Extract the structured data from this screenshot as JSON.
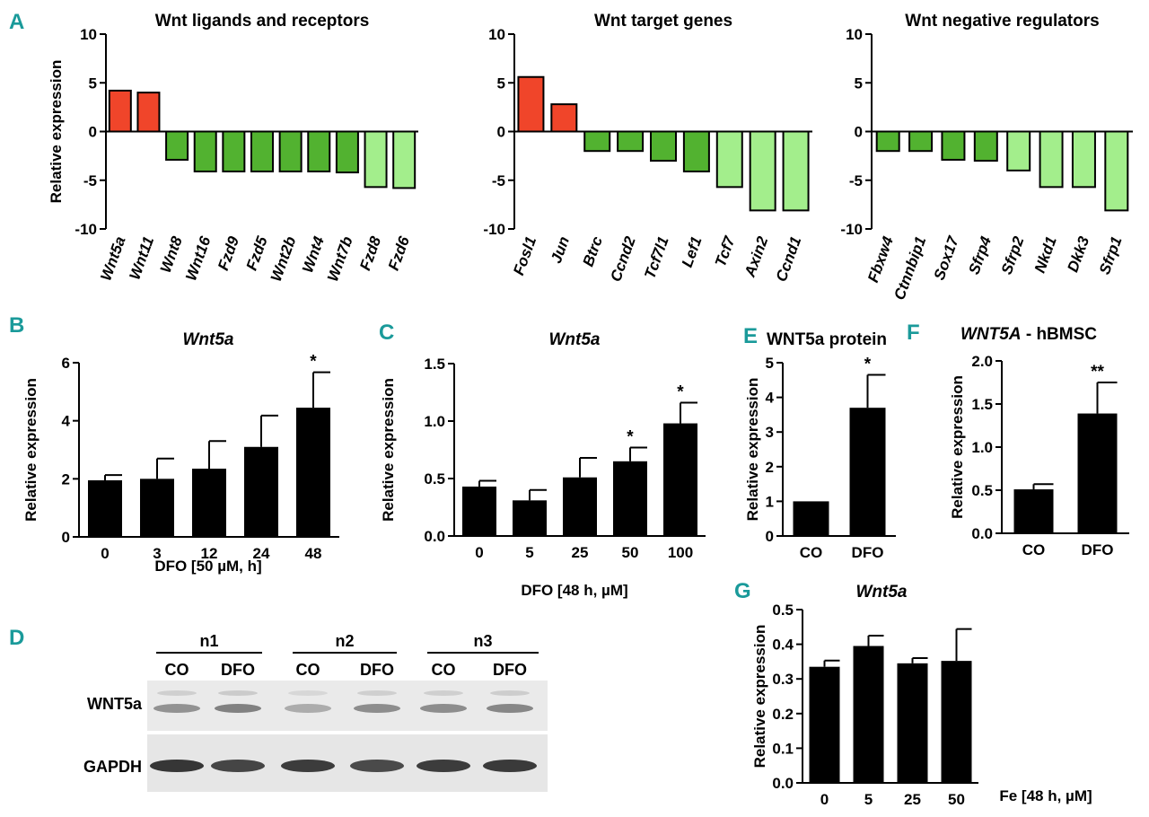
{
  "chart_data": [
    {
      "id": "A1",
      "panel_label": "A",
      "type": "bar",
      "title": "Wnt ligands and receptors",
      "ylabel": "Relative expression",
      "ylim": [
        -10,
        10
      ],
      "yticks": [
        "10",
        "5",
        "0",
        "-5",
        "-10"
      ],
      "categories": [
        "Wnt5a",
        "Wnt11",
        "Wnt8",
        "Wnt16",
        "Fzd9",
        "Fzd5",
        "Wnt2b",
        "Wnt4",
        "Wnt7b",
        "Fzd8",
        "Fzd6"
      ],
      "values": [
        4.2,
        4.0,
        -2.9,
        -4.1,
        -4.1,
        -4.1,
        -4.1,
        -4.1,
        -4.2,
        -5.7,
        -5.8
      ],
      "colors": [
        "#f0452a",
        "#f0452a",
        "#52b230",
        "#52b230",
        "#52b230",
        "#52b230",
        "#52b230",
        "#52b230",
        "#52b230",
        "#a3ee8c",
        "#a3ee8c"
      ]
    },
    {
      "id": "A2",
      "type": "bar",
      "title": "Wnt target genes",
      "ylim": [
        -10,
        10
      ],
      "yticks": [
        "10",
        "5",
        "0",
        "-5",
        "-10"
      ],
      "categories": [
        "Fosl1",
        "Jun",
        "Btrc",
        "Ccnd2",
        "Tcf7l1",
        "Lef1",
        "Tcf7",
        "Axin2",
        "Ccnd1"
      ],
      "values": [
        5.6,
        2.8,
        -2.0,
        -2.0,
        -3.0,
        -4.1,
        -5.7,
        -8.1,
        -8.1
      ],
      "colors": [
        "#f0452a",
        "#f0452a",
        "#52b230",
        "#52b230",
        "#52b230",
        "#52b230",
        "#a3ee8c",
        "#a3ee8c",
        "#a3ee8c"
      ]
    },
    {
      "id": "A3",
      "type": "bar",
      "title": "Wnt negative regulators",
      "ylim": [
        -10,
        10
      ],
      "yticks": [
        "10",
        "5",
        "0",
        "-5",
        "-10"
      ],
      "categories": [
        "Fbxw4",
        "Ctnnbip1",
        "Sox17",
        "Sfrp4",
        "Sfrp2",
        "Nkd1",
        "Dkk3",
        "Sfrp1"
      ],
      "values": [
        -2.0,
        -2.0,
        -2.9,
        -3.0,
        -4.0,
        -5.7,
        -5.7,
        -8.1
      ],
      "colors": [
        "#52b230",
        "#52b230",
        "#52b230",
        "#52b230",
        "#a3ee8c",
        "#a3ee8c",
        "#a3ee8c",
        "#a3ee8c"
      ]
    },
    {
      "id": "B",
      "panel_label": "B",
      "type": "bar",
      "title": "Wnt5a",
      "ylabel": "Relative expression",
      "xlabel": "DFO [50 µM, h]",
      "ylim": [
        0,
        6
      ],
      "yticks": [
        "0",
        "2",
        "4",
        "6"
      ],
      "categories": [
        "0",
        "3",
        "12",
        "24",
        "48"
      ],
      "values": [
        1.95,
        2.0,
        2.35,
        3.1,
        4.45
      ],
      "errors": [
        0.18,
        0.7,
        0.95,
        1.08,
        1.22
      ],
      "annotations": [
        "",
        "",
        "",
        "",
        "*"
      ]
    },
    {
      "id": "C",
      "panel_label": "C",
      "type": "bar",
      "title": "Wnt5a",
      "ylabel": "Relative expression",
      "xlabel": "DFO [48 h, µM]",
      "ylim": [
        0,
        1.5
      ],
      "yticks": [
        "0.0",
        "0.5",
        "1.0",
        "1.5"
      ],
      "categories": [
        "0",
        "5",
        "25",
        "50",
        "100"
      ],
      "values": [
        0.43,
        0.31,
        0.51,
        0.65,
        0.98
      ],
      "errors": [
        0.05,
        0.09,
        0.17,
        0.12,
        0.18
      ],
      "annotations": [
        "",
        "",
        "",
        "*",
        "*"
      ]
    },
    {
      "id": "E",
      "panel_label": "E",
      "type": "bar",
      "title": "WNT5a protein",
      "ylabel": "Relative expression",
      "ylim": [
        0,
        5
      ],
      "yticks": [
        "0",
        "1",
        "2",
        "3",
        "4",
        "5"
      ],
      "categories": [
        "CO",
        "DFO"
      ],
      "values": [
        1.0,
        3.7
      ],
      "errors": [
        0,
        0.95
      ],
      "annotations": [
        "",
        "*"
      ]
    },
    {
      "id": "F",
      "panel_label": "F",
      "type": "bar",
      "title": "WNT5A - hBMSC",
      "title_italic_part": "WNT5A",
      "title_plain_part": " - hBMSC",
      "ylabel": "Relative expression",
      "ylim": [
        0,
        2.0
      ],
      "yticks": [
        "0.0",
        "0.5",
        "1.0",
        "1.5",
        "2.0"
      ],
      "categories": [
        "CO",
        "DFO"
      ],
      "values": [
        0.51,
        1.39
      ],
      "errors": [
        0.06,
        0.36
      ],
      "annotations": [
        "",
        "**"
      ]
    },
    {
      "id": "G",
      "panel_label": "G",
      "type": "bar",
      "title": "Wnt5a",
      "ylabel": "Relative expression",
      "xlabel": "Fe [48 h, µM]",
      "ylim": [
        0,
        0.5
      ],
      "yticks": [
        "0.0",
        "0.1",
        "0.2",
        "0.3",
        "0.4",
        "0.5"
      ],
      "categories": [
        "0",
        "5",
        "25",
        "50"
      ],
      "values": [
        0.335,
        0.395,
        0.345,
        0.352
      ],
      "errors": [
        0.018,
        0.03,
        0.015,
        0.092
      ],
      "annotations": [
        "",
        "",
        "",
        ""
      ]
    }
  ],
  "blot": {
    "panel_label": "D",
    "groups": [
      "n1",
      "n2",
      "n3"
    ],
    "lanes": [
      "CO",
      "DFO",
      "CO",
      "DFO",
      "CO",
      "DFO"
    ],
    "rows": [
      "WNT5a",
      "GAPDH"
    ],
    "wnt5a_intensity": [
      0.55,
      0.7,
      0.3,
      0.6,
      0.6,
      0.65
    ],
    "gapdh_intensity": [
      0.95,
      0.85,
      0.9,
      0.8,
      0.9,
      0.92
    ]
  }
}
